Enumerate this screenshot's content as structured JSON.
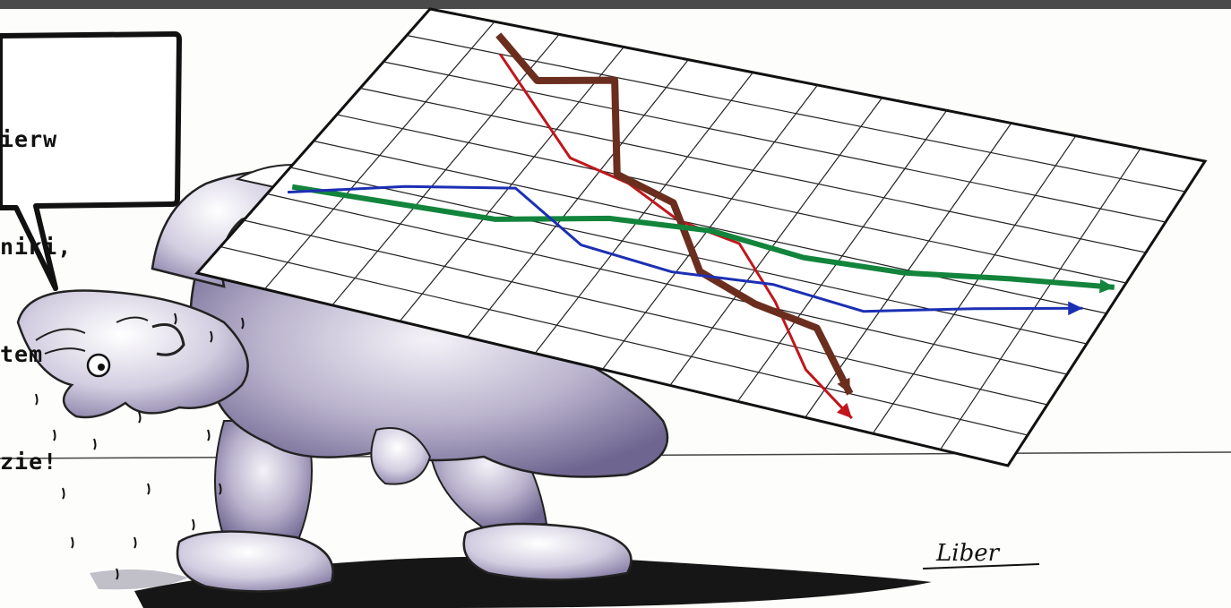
{
  "bubble": {
    "lines": [
      "ierw",
      "niki,",
      "tem",
      "zie!"
    ]
  },
  "signature": "Liber",
  "chart_data": {
    "type": "line",
    "series": [
      {
        "color": "#c0161c",
        "trend": "falling",
        "values": [
          9.0,
          7.6,
          6.2,
          5.8,
          5.0,
          4.7,
          3.2,
          1.4,
          0.3
        ]
      },
      {
        "color": "#6b2e1e",
        "trend": "falling",
        "values": [
          9.6,
          8.4,
          8.9,
          6.0,
          5.5,
          3.6,
          3.0,
          2.7,
          1.0
        ]
      },
      {
        "color": "#12843c",
        "trend": "rising",
        "values": [
          3.4,
          3.6,
          3.8,
          4.6,
          4.9,
          4.7,
          4.9,
          5.4,
          5.8
        ]
      },
      {
        "color": "#1c2fb4",
        "trend": "rising",
        "values": [
          3.2,
          4.2,
          4.9,
          3.6,
          3.4,
          3.7,
          3.5,
          4.3,
          5.0
        ]
      }
    ]
  },
  "colors": {
    "paper": "#fdfdfb",
    "figure_shade": "#8c83a6",
    "ink": "#111111"
  }
}
